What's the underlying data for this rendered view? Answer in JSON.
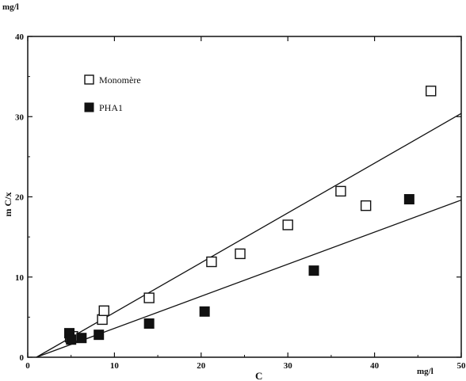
{
  "chart_data": {
    "type": "scatter",
    "title": "",
    "xlabel": "C",
    "ylabel": "m C/x",
    "x_unit": "mg/l",
    "y_unit": "mg/l",
    "xlim": [
      0,
      50
    ],
    "ylim": [
      0,
      40
    ],
    "xticks": [
      "0",
      "10",
      "20",
      "30",
      "40",
      "50"
    ],
    "yticks": [
      "0",
      "10",
      "20",
      "30",
      "40"
    ],
    "grid": false,
    "legend_position": "top-left",
    "series": [
      {
        "name": "Monomère",
        "marker": "open-square",
        "color": "#111111",
        "points": [
          [
            4.9,
            2.5
          ],
          [
            5.2,
            2.6
          ],
          [
            8.6,
            4.7
          ],
          [
            8.8,
            5.8
          ],
          [
            14.0,
            7.4
          ],
          [
            21.2,
            11.9
          ],
          [
            24.5,
            12.9
          ],
          [
            30.0,
            16.5
          ],
          [
            36.1,
            20.7
          ],
          [
            39.0,
            18.9
          ],
          [
            46.5,
            33.2
          ]
        ]
      },
      {
        "name": "PHA1",
        "marker": "filled-square",
        "color": "#111111",
        "points": [
          [
            4.8,
            3.0
          ],
          [
            5.0,
            2.2
          ],
          [
            6.2,
            2.4
          ],
          [
            8.2,
            2.8
          ],
          [
            14.0,
            4.2
          ],
          [
            20.4,
            5.7
          ],
          [
            33.0,
            10.8
          ],
          [
            44.0,
            19.7
          ]
        ]
      }
    ],
    "fit_lines": [
      {
        "series": "Monomère",
        "points": [
          [
            1.0,
            0.0
          ],
          [
            50.0,
            30.4
          ]
        ]
      },
      {
        "series": "PHA1",
        "points": [
          [
            1.0,
            0.0
          ],
          [
            50.0,
            19.6
          ]
        ]
      }
    ]
  }
}
